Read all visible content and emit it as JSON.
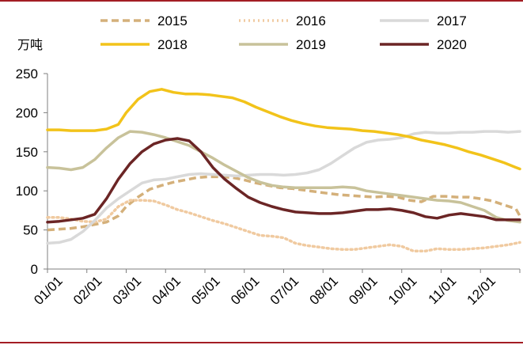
{
  "chart_data": {
    "type": "line",
    "title": "",
    "ylabel": "万吨",
    "xlabel": "",
    "ylim": [
      0,
      250
    ],
    "yticks": [
      "0",
      "50",
      "100",
      "150",
      "200",
      "250"
    ],
    "ytick_values": [
      0,
      50,
      100,
      150,
      200,
      250
    ],
    "grid": false,
    "legend_position": "top",
    "categories": [
      "01/01",
      "02/01",
      "03/01",
      "04/01",
      "05/01",
      "06/01",
      "07/01",
      "08/01",
      "09/01",
      "10/01",
      "11/01",
      "12/01"
    ],
    "series": [
      {
        "name": "2015",
        "color": "#d4b07a",
        "style": "dashed",
        "x": [
          0,
          0.3,
          0.6,
          0.9,
          1.2,
          1.5,
          1.8,
          2.0,
          2.3,
          2.6,
          2.9,
          3.2,
          3.5,
          3.8,
          4.1,
          4.4,
          4.7,
          5.0,
          5.3,
          5.6,
          5.9,
          6.2,
          6.5,
          6.8,
          7.1,
          7.4,
          7.7,
          8.0,
          8.3,
          8.6,
          8.9,
          9.2,
          9.5,
          9.8,
          10.1,
          10.4,
          10.7,
          11.0,
          11.3,
          11.6,
          11.9,
          12.0
        ],
        "y": [
          50,
          51,
          52,
          54,
          57,
          60,
          68,
          80,
          92,
          102,
          107,
          111,
          114,
          117,
          118,
          118,
          117,
          114,
          110,
          107,
          104,
          103,
          101,
          99,
          97,
          95,
          94,
          93,
          92,
          93,
          92,
          88,
          86,
          93,
          93,
          92,
          92,
          90,
          87,
          82,
          77,
          68
        ]
      },
      {
        "name": "2016",
        "color": "#f0caa0",
        "style": "dotted",
        "x": [
          0,
          0.3,
          0.6,
          0.9,
          1.2,
          1.5,
          1.8,
          2.1,
          2.4,
          2.7,
          3.0,
          3.3,
          3.6,
          3.9,
          4.2,
          4.5,
          4.8,
          5.1,
          5.4,
          5.7,
          6.0,
          6.3,
          6.6,
          6.9,
          7.2,
          7.5,
          7.8,
          8.1,
          8.4,
          8.7,
          9.0,
          9.3,
          9.6,
          9.9,
          10.2,
          10.5,
          10.8,
          11.1,
          11.4,
          11.7,
          12.0
        ],
        "y": [
          66,
          66,
          64,
          61,
          60,
          64,
          80,
          88,
          88,
          87,
          82,
          76,
          72,
          67,
          62,
          58,
          53,
          48,
          43,
          42,
          40,
          33,
          30,
          28,
          26,
          25,
          25,
          27,
          29,
          31,
          29,
          23,
          23,
          26,
          25,
          25,
          26,
          27,
          29,
          31,
          34
        ]
      },
      {
        "name": "2017",
        "color": "#d9d9d9",
        "style": "solid",
        "x": [
          0,
          0.3,
          0.6,
          0.9,
          1.2,
          1.5,
          1.8,
          2.1,
          2.4,
          2.7,
          3.0,
          3.3,
          3.6,
          3.9,
          4.2,
          4.5,
          4.8,
          5.1,
          5.4,
          5.7,
          6.0,
          6.3,
          6.6,
          6.9,
          7.2,
          7.5,
          7.8,
          8.1,
          8.4,
          8.7,
          9.0,
          9.3,
          9.6,
          9.9,
          10.2,
          10.5,
          10.8,
          11.1,
          11.4,
          11.7,
          12.0
        ],
        "y": [
          33,
          34,
          38,
          48,
          62,
          78,
          90,
          100,
          110,
          114,
          115,
          118,
          121,
          122,
          121,
          120,
          119,
          120,
          121,
          121,
          120,
          121,
          123,
          127,
          135,
          145,
          155,
          162,
          165,
          166,
          168,
          173,
          175,
          174,
          174,
          175,
          175,
          176,
          176,
          175,
          176
        ]
      },
      {
        "name": "2018",
        "color": "#f2c31a",
        "style": "solid",
        "x": [
          0,
          0.3,
          0.6,
          0.9,
          1.2,
          1.5,
          1.8,
          2.0,
          2.3,
          2.6,
          2.9,
          3.2,
          3.5,
          3.8,
          4.1,
          4.4,
          4.7,
          5.0,
          5.3,
          5.6,
          5.9,
          6.2,
          6.5,
          6.8,
          7.1,
          7.4,
          7.7,
          8.0,
          8.3,
          8.6,
          8.9,
          9.2,
          9.5,
          9.8,
          10.1,
          10.4,
          10.7,
          11.0,
          11.3,
          11.6,
          11.9,
          12.0
        ],
        "y": [
          178,
          178,
          177,
          177,
          177,
          179,
          185,
          200,
          217,
          227,
          230,
          226,
          224,
          224,
          223,
          221,
          219,
          214,
          207,
          201,
          195,
          190,
          186,
          183,
          181,
          180,
          179,
          177,
          176,
          174,
          172,
          169,
          165,
          162,
          159,
          155,
          150,
          146,
          141,
          136,
          130,
          128
        ]
      },
      {
        "name": "2019",
        "color": "#c8c29a",
        "style": "solid",
        "x": [
          0,
          0.3,
          0.6,
          0.9,
          1.2,
          1.5,
          1.8,
          2.1,
          2.4,
          2.7,
          3.0,
          3.3,
          3.6,
          3.9,
          4.2,
          4.5,
          4.8,
          5.1,
          5.4,
          5.7,
          6.0,
          6.3,
          6.6,
          6.9,
          7.2,
          7.5,
          7.8,
          8.1,
          8.4,
          8.7,
          9.0,
          9.3,
          9.6,
          9.9,
          10.2,
          10.5,
          10.8,
          11.1,
          11.4,
          11.7,
          12.0
        ],
        "y": [
          130,
          129,
          127,
          130,
          140,
          155,
          168,
          176,
          175,
          172,
          168,
          163,
          158,
          150,
          142,
          133,
          125,
          117,
          111,
          107,
          105,
          104,
          104,
          104,
          104,
          105,
          104,
          100,
          98,
          96,
          94,
          92,
          90,
          88,
          87,
          85,
          80,
          75,
          66,
          62,
          60
        ]
      },
      {
        "name": "2020",
        "color": "#6b2525",
        "style": "solid",
        "x": [
          0,
          0.3,
          0.6,
          0.9,
          1.2,
          1.5,
          1.8,
          2.1,
          2.4,
          2.7,
          3.0,
          3.3,
          3.6,
          3.9,
          4.2,
          4.5,
          4.8,
          5.1,
          5.4,
          5.7,
          6.0,
          6.3,
          6.6,
          6.9,
          7.2,
          7.5,
          7.8,
          8.1,
          8.4,
          8.7,
          9.0,
          9.3,
          9.6,
          9.9,
          10.2,
          10.5,
          10.8,
          11.1,
          11.4,
          11.7,
          12.0
        ],
        "y": [
          60,
          61,
          63,
          65,
          70,
          90,
          115,
          135,
          150,
          160,
          165,
          167,
          164,
          150,
          130,
          115,
          103,
          92,
          85,
          80,
          76,
          73,
          72,
          71,
          71,
          72,
          74,
          76,
          76,
          77,
          75,
          72,
          67,
          65,
          69,
          71,
          69,
          67,
          63,
          63,
          63
        ]
      }
    ]
  }
}
